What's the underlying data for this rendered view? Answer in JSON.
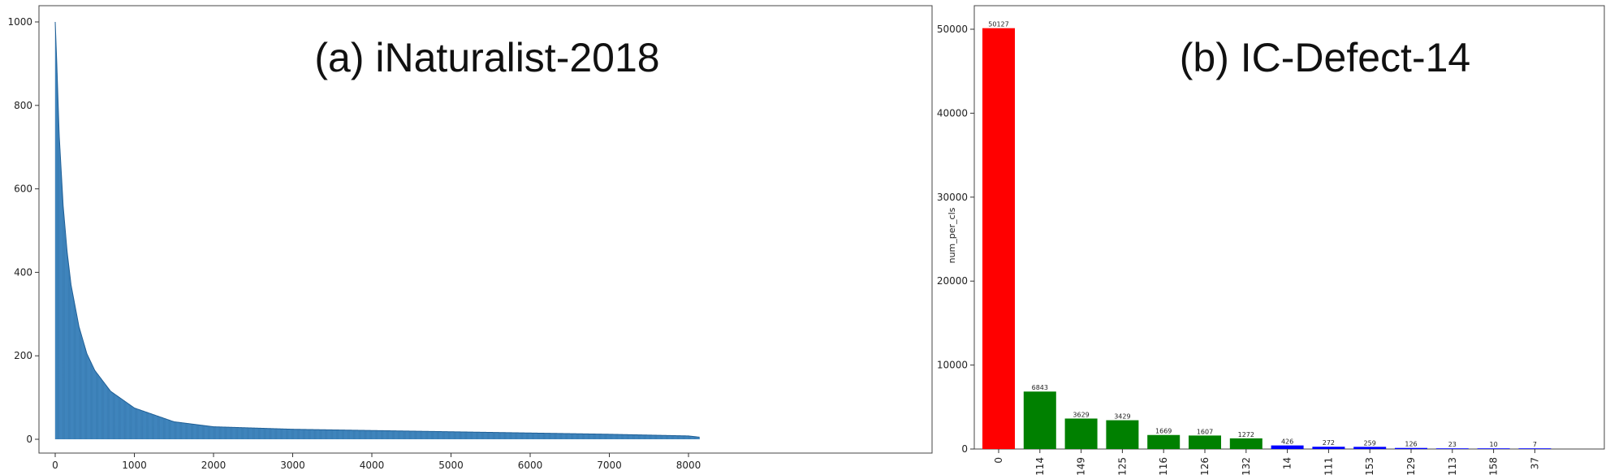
{
  "chart_data": [
    {
      "type": "bar",
      "title": "(a) iNaturalist-2018",
      "xlabel": "",
      "ylabel": "",
      "xlim": [
        -150,
        8300
      ],
      "ylim": [
        0,
        1030
      ],
      "xticks": [
        0,
        1000,
        2000,
        3000,
        4000,
        5000,
        6000,
        7000,
        8000
      ],
      "yticks": [
        0,
        200,
        400,
        600,
        800,
        1000
      ],
      "num_classes": 8142,
      "color": "#4a90c8",
      "edge_color": "#1f5f96",
      "grid": false,
      "curve": {
        "x": [
          0,
          20,
          50,
          100,
          150,
          200,
          300,
          400,
          500,
          700,
          1000,
          1500,
          2000,
          3000,
          4000,
          5000,
          6000,
          7000,
          8000,
          8142
        ],
        "values": [
          1000,
          900,
          730,
          560,
          450,
          370,
          270,
          205,
          165,
          115,
          75,
          42,
          30,
          24,
          21,
          18,
          15,
          12,
          8,
          5
        ]
      }
    },
    {
      "type": "bar",
      "title": "(b) IC-Defect-14",
      "xlabel": "",
      "ylabel": "num_per_cls",
      "ylim": [
        0,
        52000
      ],
      "yticks": [
        0,
        10000,
        20000,
        30000,
        40000,
        50000
      ],
      "categories": [
        "0",
        "114",
        "149",
        "125",
        "116",
        "126",
        "132",
        "14",
        "111",
        "153",
        "129",
        "113",
        "158",
        "37"
      ],
      "values": [
        50127,
        6843,
        3629,
        3429,
        1669,
        1607,
        1272,
        426,
        272,
        259,
        126,
        23,
        10,
        7
      ],
      "data_labels": [
        "50127",
        "6843",
        "3629",
        "3429",
        "1669",
        "1607",
        "1272",
        "426",
        "272",
        "259",
        "126",
        "23",
        "10",
        "7"
      ],
      "colors": [
        "#ff0000",
        "#008000",
        "#008000",
        "#008000",
        "#008000",
        "#008000",
        "#008000",
        "#0000ff",
        "#0000ff",
        "#0000ff",
        "#0000ff",
        "#0000ff",
        "#0000ff",
        "#0000ff"
      ],
      "grid": false
    }
  ]
}
